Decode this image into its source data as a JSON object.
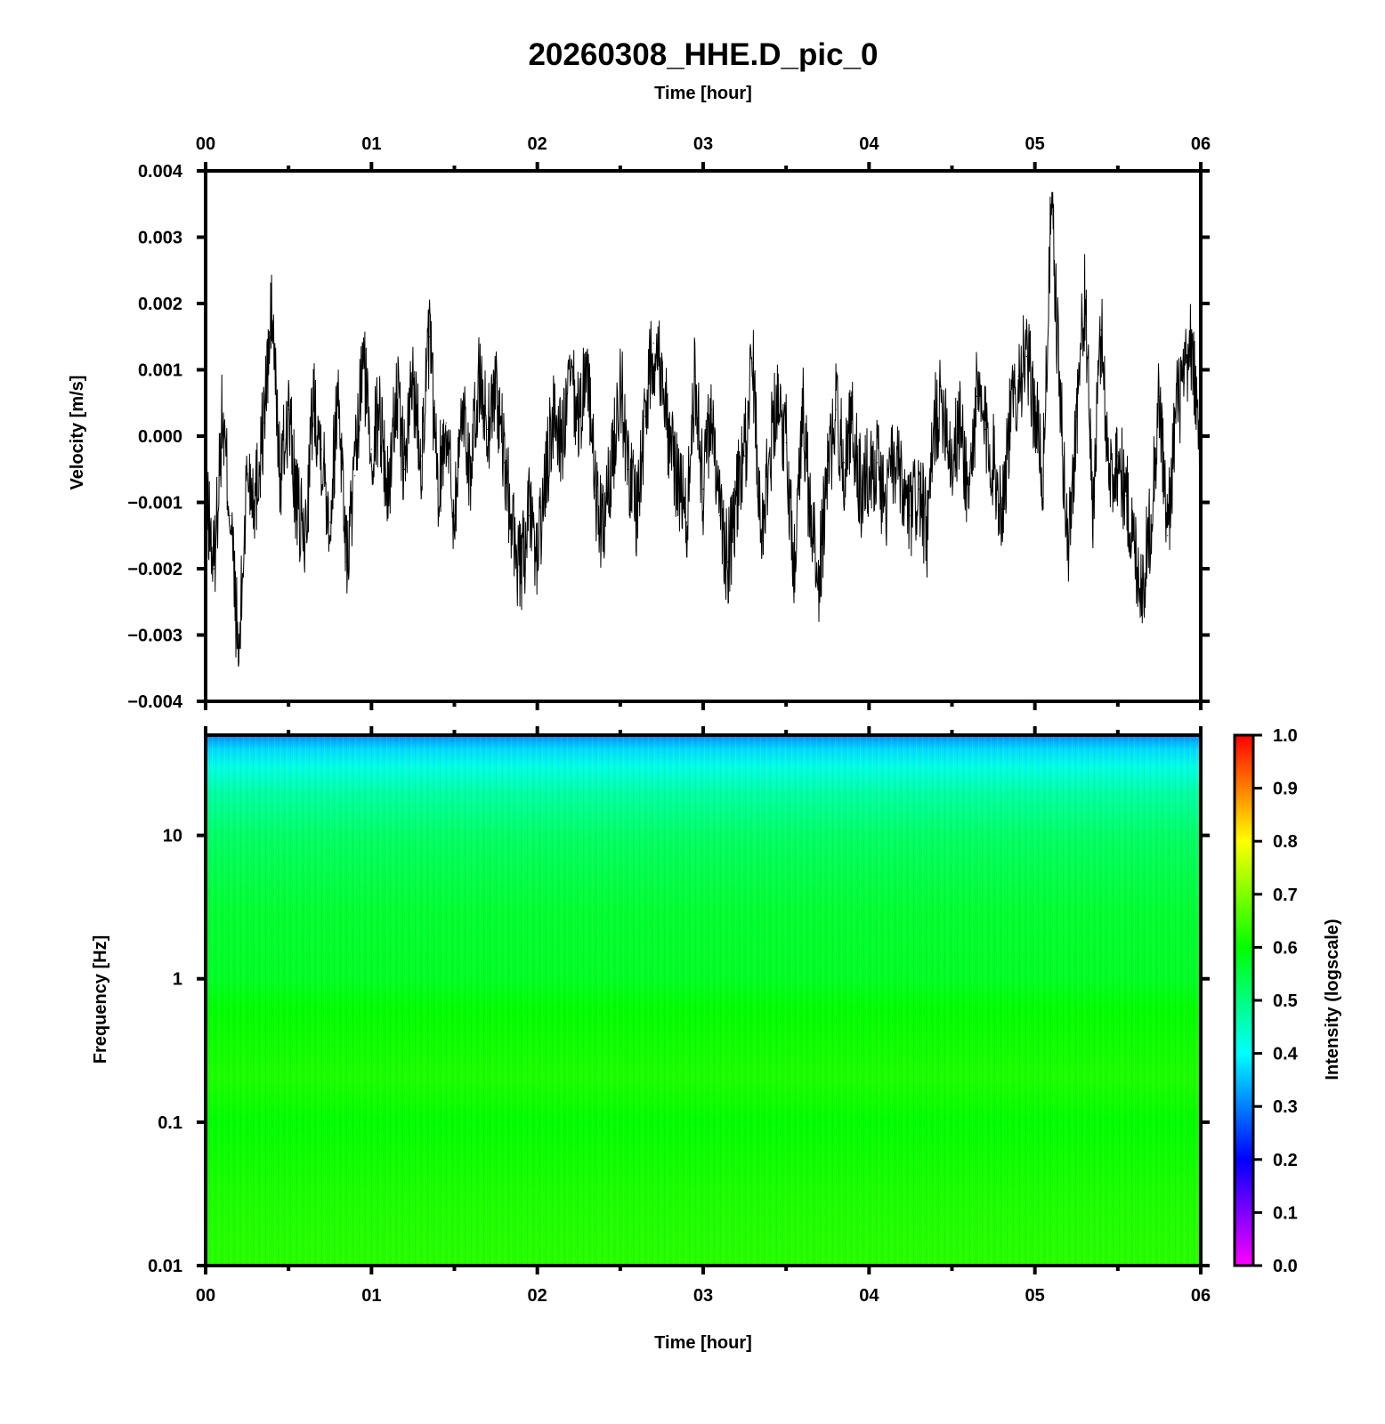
{
  "chart_data": [
    {
      "type": "line",
      "title": "20260308_HHE.D_pic_0",
      "top_xlabel": "Time [hour]",
      "ylabel": "Velocity [m/s]",
      "xlim": [
        0,
        6
      ],
      "ylim": [
        -0.004,
        0.004
      ],
      "x_ticks": [
        "00",
        "01",
        "02",
        "03",
        "04",
        "05",
        "06"
      ],
      "y_ticks": [
        "0.004",
        "0.003",
        "0.002",
        "0.001",
        "0.000",
        "−0.001",
        "−0.002",
        "−0.003",
        "−0.004"
      ],
      "y_tick_values": [
        0.004,
        0.003,
        0.002,
        0.001,
        0.0,
        -0.001,
        -0.002,
        -0.003,
        -0.004
      ],
      "series": [
        {
          "x": [
            0.0,
            0.05,
            0.1,
            0.15,
            0.2,
            0.25,
            0.3,
            0.35,
            0.4,
            0.45,
            0.5,
            0.55,
            0.6,
            0.65,
            0.7,
            0.75,
            0.8,
            0.85,
            0.9,
            0.95,
            1.0,
            1.05,
            1.1,
            1.15,
            1.2,
            1.25,
            1.3,
            1.35,
            1.4,
            1.45,
            1.5,
            1.55,
            1.6,
            1.65,
            1.7,
            1.75,
            1.8,
            1.85,
            1.9,
            1.95,
            2.0,
            2.05,
            2.1,
            2.15,
            2.2,
            2.25,
            2.3,
            2.35,
            2.4,
            2.45,
            2.5,
            2.55,
            2.6,
            2.65,
            2.7,
            2.75,
            2.8,
            2.85,
            2.9,
            2.95,
            3.0,
            3.05,
            3.1,
            3.15,
            3.2,
            3.25,
            3.3,
            3.35,
            3.4,
            3.45,
            3.5,
            3.55,
            3.6,
            3.65,
            3.7,
            3.75,
            3.8,
            3.85,
            3.9,
            3.95,
            4.0,
            4.05,
            4.1,
            4.15,
            4.2,
            4.25,
            4.3,
            4.35,
            4.4,
            4.45,
            4.5,
            4.55,
            4.6,
            4.65,
            4.7,
            4.75,
            4.8,
            4.85,
            4.9,
            4.95,
            5.0,
            5.05,
            5.1,
            5.15,
            5.2,
            5.25,
            5.3,
            5.35,
            5.4,
            5.45,
            5.5,
            5.55,
            5.6,
            5.65,
            5.7,
            5.75,
            5.8,
            5.85,
            5.9,
            5.95,
            6.0
          ],
          "values": [
            -0.0008,
            -0.002,
            0.0003,
            -0.0012,
            -0.0034,
            -0.0005,
            -0.0009,
            0.0002,
            0.0019,
            -0.0007,
            0.0004,
            -0.0011,
            -0.0016,
            0.0006,
            -0.0002,
            -0.0013,
            0.0008,
            -0.0019,
            -0.0006,
            0.0012,
            -0.0002,
            0.0004,
            -0.0009,
            0.0007,
            -0.0005,
            0.0009,
            -0.0003,
            0.0015,
            -0.0008,
            0.0002,
            -0.0012,
            0.0005,
            -0.0006,
            0.0009,
            0.0001,
            0.0008,
            -0.0004,
            -0.0014,
            -0.0021,
            -0.0012,
            -0.0018,
            -0.0007,
            0.0004,
            -0.0001,
            0.0008,
            0.0002,
            0.0012,
            -0.0009,
            -0.0015,
            -0.0004,
            0.0009,
            -0.0005,
            -0.0011,
            0.0003,
            0.0014,
            0.0011,
            -0.0002,
            -0.0006,
            -0.0013,
            0.0009,
            -0.0008,
            0.0004,
            -0.0012,
            -0.0019,
            -0.0009,
            -0.0003,
            0.0011,
            -0.0014,
            -0.0003,
            0.0007,
            -0.0001,
            -0.0019,
            0.0004,
            -0.0014,
            -0.0021,
            -0.0006,
            0.0004,
            -0.0004,
            0.0002,
            -0.0008,
            -0.0005,
            -0.0004,
            -0.0011,
            -0.0003,
            -0.0009,
            -0.0012,
            -0.0008,
            -0.0015,
            0.0003,
            0.0005,
            -0.0004,
            0.0002,
            -0.0009,
            0.0006,
            0.0001,
            -0.0004,
            -0.0011,
            0.0002,
            0.0009,
            0.0012,
            0.0004,
            -0.0006,
            0.0035,
            0.0007,
            -0.0018,
            0.0003,
            0.0021,
            -0.0011,
            0.0016,
            -0.0007,
            -0.0003,
            -0.0009,
            -0.0017,
            -0.0023,
            -0.0012,
            0.0006,
            -0.0015,
            0.0004,
            0.0008,
            0.0014,
            -0.0008
          ]
        }
      ],
      "line_color": "#000000"
    },
    {
      "type": "heatmap",
      "xlabel": "Time [hour]",
      "ylabel": "Frequency [Hz]",
      "y_scale": "log",
      "xlim": [
        0,
        6
      ],
      "ylim": [
        0.01,
        50
      ],
      "x_ticks": [
        "00",
        "01",
        "02",
        "03",
        "04",
        "05",
        "06"
      ],
      "y_ticks": [
        "10",
        "1",
        "0.1",
        "0.01"
      ],
      "y_tick_values": [
        10,
        1,
        0.1,
        0.01
      ],
      "intensity_profile": {
        "frequency_hz": [
          50,
          40,
          30,
          20,
          10,
          3,
          1,
          0.6,
          0.35,
          0.2,
          0.1,
          0.03,
          0.01
        ],
        "intensity": [
          0.31,
          0.37,
          0.42,
          0.47,
          0.52,
          0.56,
          0.57,
          0.6,
          0.61,
          0.62,
          0.6,
          0.62,
          0.63
        ]
      },
      "colorbar": {
        "label": "Intensity (logscale)",
        "range": [
          0.0,
          1.0
        ],
        "ticks": [
          "1.0",
          "0.9",
          "0.8",
          "0.7",
          "0.6",
          "0.5",
          "0.4",
          "0.3",
          "0.2",
          "0.1",
          "0.0"
        ],
        "tick_values": [
          1.0,
          0.9,
          0.8,
          0.7,
          0.6,
          0.5,
          0.4,
          0.3,
          0.2,
          0.1,
          0.0
        ],
        "colormap": [
          "#ff00ff",
          "#0000ff",
          "#00ffff",
          "#00ff00",
          "#ffff00",
          "#ff0000"
        ]
      }
    }
  ]
}
